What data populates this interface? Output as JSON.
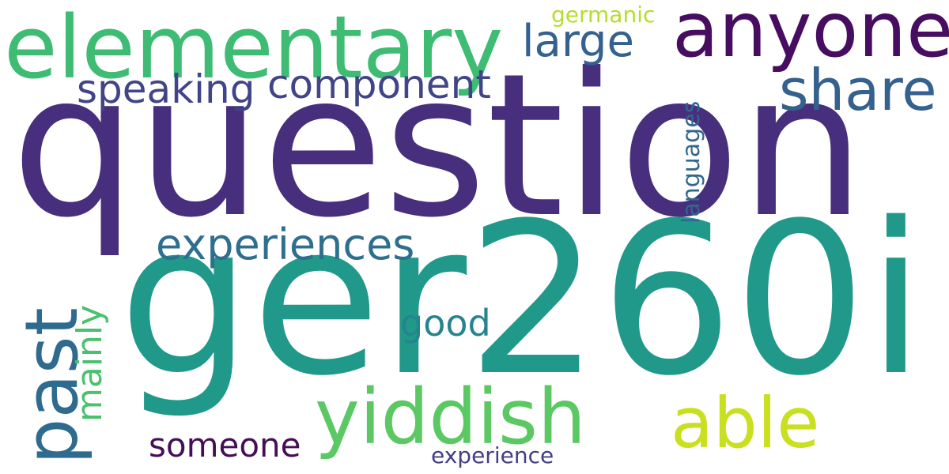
{
  "wordcloud": {
    "words": {
      "question": {
        "text": "question",
        "color": "#472f7d"
      },
      "ger260i": {
        "text": "ger260i",
        "color": "#21998a"
      },
      "elementary": {
        "text": "elementary",
        "color": "#3fbc73"
      },
      "anyone": {
        "text": "anyone",
        "color": "#470d60"
      },
      "share": {
        "text": "share",
        "color": "#34618d"
      },
      "large": {
        "text": "large",
        "color": "#34618d"
      },
      "germanic": {
        "text": "germanic",
        "color": "#b5de2b"
      },
      "speaking": {
        "text": "speaking",
        "color": "#414487"
      },
      "component": {
        "text": "component",
        "color": "#414487"
      },
      "experiences": {
        "text": "experiences",
        "color": "#2e6e8e"
      },
      "yiddish": {
        "text": "yiddish",
        "color": "#5cc863"
      },
      "able": {
        "text": "able",
        "color": "#c8e020"
      },
      "someone": {
        "text": "someone",
        "color": "#440f54"
      },
      "experience": {
        "text": "experience",
        "color": "#433e85"
      },
      "good": {
        "text": "good",
        "color": "#25848e"
      },
      "past": {
        "text": "past",
        "color": "#2f6b8e"
      },
      "mainly": {
        "text": "mainly",
        "color": "#4ac16d"
      },
      "languages": {
        "text": "languages",
        "color": "#31668e"
      }
    }
  }
}
